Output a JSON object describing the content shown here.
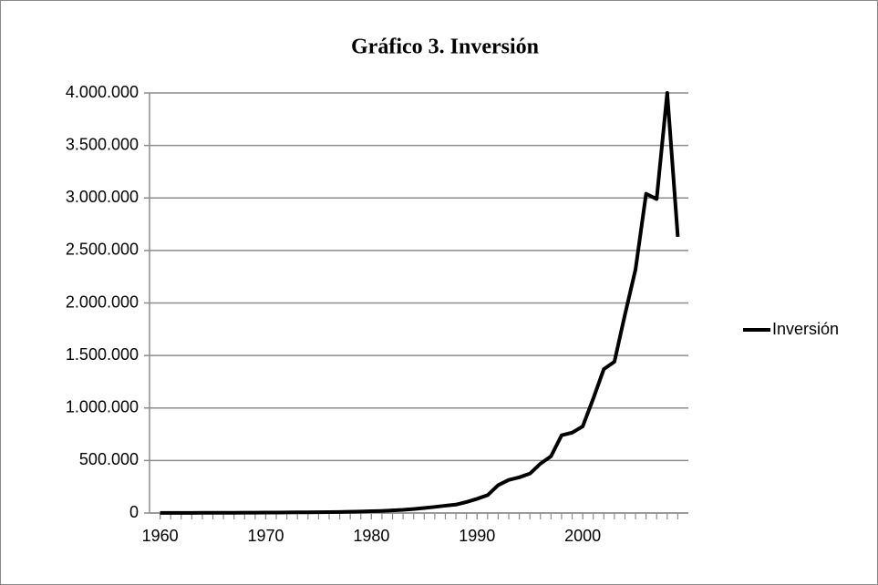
{
  "chart_data": {
    "type": "line",
    "title": "Gráfico 3. Inversión",
    "x": [
      1960,
      1961,
      1962,
      1963,
      1964,
      1965,
      1966,
      1967,
      1968,
      1969,
      1970,
      1971,
      1972,
      1973,
      1974,
      1975,
      1976,
      1977,
      1978,
      1979,
      1980,
      1981,
      1982,
      1983,
      1984,
      1985,
      1986,
      1987,
      1988,
      1989,
      1990,
      1991,
      1992,
      1993,
      1994,
      1995,
      1996,
      1997,
      1998,
      1999,
      2000,
      2001,
      2002,
      2003,
      2004,
      2005,
      2006,
      2007,
      2008,
      2009
    ],
    "series": [
      {
        "name": "Inversión",
        "color": "#000000",
        "values": [
          1000,
          1200,
          1400,
          1600,
          1800,
          2000,
          2300,
          2600,
          3000,
          3500,
          4000,
          4500,
          5000,
          6000,
          7000,
          8000,
          9000,
          10000,
          12000,
          14000,
          17000,
          20000,
          25000,
          30000,
          38000,
          48000,
          58000,
          70000,
          80000,
          105000,
          135000,
          170000,
          265000,
          315000,
          340000,
          375000,
          470000,
          540000,
          740000,
          765000,
          825000,
          1090000,
          1370000,
          1440000,
          1890000,
          2320000,
          3040000,
          2990000,
          4000000,
          2630000
        ]
      }
    ],
    "xlim": [
      1959,
      2010
    ],
    "xticks": [
      1960,
      1970,
      1980,
      1990,
      2000
    ],
    "ylim": [
      0,
      4000000
    ],
    "yticks": [
      0,
      {
        "value": 500000,
        "label": "500.000"
      },
      {
        "value": 1000000,
        "label": "1.000.000"
      },
      {
        "value": 1500000,
        "label": "1.500.000"
      },
      {
        "value": 2000000,
        "label": "2.000.000"
      },
      {
        "value": 2500000,
        "label": "2.500.000"
      },
      {
        "value": 3000000,
        "label": "3.000.000"
      },
      {
        "value": 3500000,
        "label": "3.500.000"
      },
      {
        "value": 4000000,
        "label": "4.000.000"
      }
    ],
    "grid": true,
    "legend": "right"
  }
}
